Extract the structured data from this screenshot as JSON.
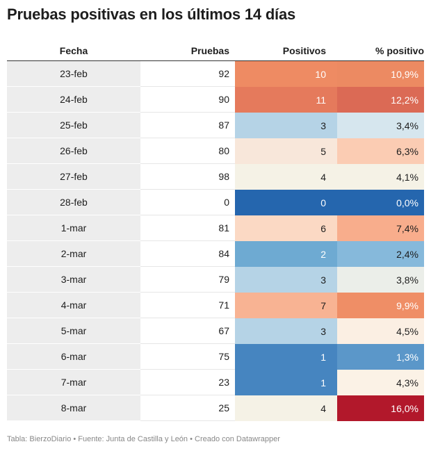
{
  "title": "Pruebas positivas en los últimos 14 días",
  "footer": "Tabla: BierzoDiario • Fuente: Junta de Castilla y León • Creado con Datawrapper",
  "chart_data": {
    "type": "table",
    "columns": [
      "Fecha",
      "Pruebas",
      "Positivos",
      "% positivo"
    ],
    "rows": [
      {
        "fecha": "23-feb",
        "pruebas": "92",
        "positivos": "10",
        "pct": "10,9%",
        "pos_color": "#ee8b63",
        "pct_color": "#ec8a62",
        "pos_text": "#ffffff",
        "pct_text": "#ffffff"
      },
      {
        "fecha": "24-feb",
        "pruebas": "90",
        "positivos": "11",
        "pct": "12,2%",
        "pos_color": "#e57a5c",
        "pct_color": "#db6a55",
        "pos_text": "#ffffff",
        "pct_text": "#ffffff"
      },
      {
        "fecha": "25-feb",
        "pruebas": "87",
        "positivos": "3",
        "pct": "3,4%",
        "pos_color": "#b5d3e6",
        "pct_color": "#d6e6ee",
        "pos_text": "#1d1d1d",
        "pct_text": "#1d1d1d"
      },
      {
        "fecha": "26-feb",
        "pruebas": "80",
        "positivos": "5",
        "pct": "6,3%",
        "pos_color": "#f8e7da",
        "pct_color": "#fbccb3",
        "pos_text": "#1d1d1d",
        "pct_text": "#1d1d1d"
      },
      {
        "fecha": "27-feb",
        "pruebas": "98",
        "positivos": "4",
        "pct": "4,1%",
        "pos_color": "#f5f2e6",
        "pct_color": "#f5f2e6",
        "pos_text": "#1d1d1d",
        "pct_text": "#1d1d1d"
      },
      {
        "fecha": "28-feb",
        "pruebas": "0",
        "positivos": "0",
        "pct": "0,0%",
        "pos_color": "#2566ae",
        "pct_color": "#2566ae",
        "pos_text": "#ffffff",
        "pct_text": "#ffffff"
      },
      {
        "fecha": "1-mar",
        "pruebas": "81",
        "positivos": "6",
        "pct": "7,4%",
        "pos_color": "#fbd9c4",
        "pct_color": "#f8ad8c",
        "pos_text": "#1d1d1d",
        "pct_text": "#1d1d1d"
      },
      {
        "fecha": "2-mar",
        "pruebas": "84",
        "positivos": "2",
        "pct": "2,4%",
        "pos_color": "#6eaad2",
        "pct_color": "#86b9db",
        "pos_text": "#ffffff",
        "pct_text": "#1d1d1d"
      },
      {
        "fecha": "3-mar",
        "pruebas": "79",
        "positivos": "3",
        "pct": "3,8%",
        "pos_color": "#b5d3e6",
        "pct_color": "#ebeee9",
        "pos_text": "#1d1d1d",
        "pct_text": "#1d1d1d"
      },
      {
        "fecha": "4-mar",
        "pruebas": "71",
        "positivos": "7",
        "pct": "9,9%",
        "pos_color": "#f8b393",
        "pct_color": "#ef8e66",
        "pos_text": "#1d1d1d",
        "pct_text": "#ffffff"
      },
      {
        "fecha": "5-mar",
        "pruebas": "67",
        "positivos": "3",
        "pct": "4,5%",
        "pos_color": "#b5d3e6",
        "pct_color": "#fbefe3",
        "pos_text": "#1d1d1d",
        "pct_text": "#1d1d1d"
      },
      {
        "fecha": "6-mar",
        "pruebas": "75",
        "positivos": "1",
        "pct": "1,3%",
        "pos_color": "#4685c0",
        "pct_color": "#5b97c9",
        "pos_text": "#ffffff",
        "pct_text": "#ffffff"
      },
      {
        "fecha": "7-mar",
        "pruebas": "23",
        "positivos": "1",
        "pct": "4,3%",
        "pos_color": "#4685c0",
        "pct_color": "#fbf2e6",
        "pos_text": "#ffffff",
        "pct_text": "#1d1d1d"
      },
      {
        "fecha": "8-mar",
        "pruebas": "25",
        "positivos": "4",
        "pct": "16,0%",
        "pos_color": "#f5f2e6",
        "pct_color": "#b2182b",
        "pos_text": "#1d1d1d",
        "pct_text": "#ffffff"
      }
    ]
  }
}
